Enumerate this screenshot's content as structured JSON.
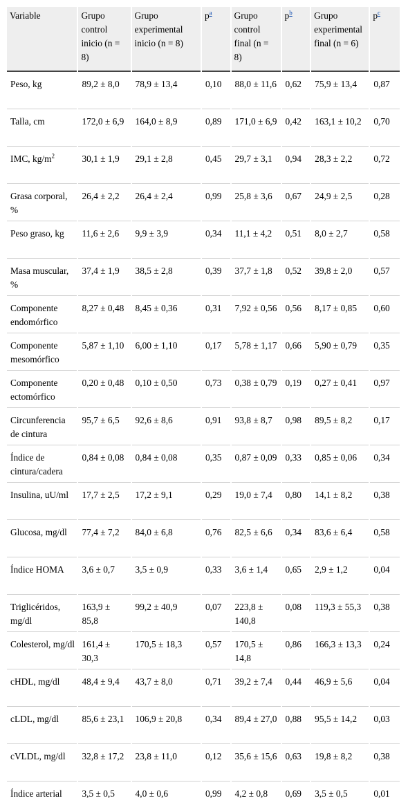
{
  "headers": [
    {
      "text": "Variable",
      "sup": ""
    },
    {
      "text": "Grupo control inicio (n = 8)",
      "sup": ""
    },
    {
      "text": "Grupo experimental inicio (n = 8)",
      "sup": ""
    },
    {
      "text": "p",
      "sup": "a"
    },
    {
      "text": "Grupo control final (n = 8)",
      "sup": ""
    },
    {
      "text": "p",
      "sup": "b"
    },
    {
      "text": "Grupo experimental final (n = 6)",
      "sup": ""
    },
    {
      "text": "p",
      "sup": "c"
    }
  ],
  "rows": [
    {
      "variable": "Peso, kg",
      "c1": "89,2 ± 8,0",
      "c2": "78,9 ± 13,4",
      "pa": "0,10",
      "c3": "88,0 ± 11,6",
      "pb": "0,62",
      "c4": "75,9 ± 13,4",
      "pc": "0,87"
    },
    {
      "variable": "Talla, cm",
      "c1": "172,0 ± 6,9",
      "c2": "164,0 ± 8,9",
      "pa": "0,89",
      "c3": "171,0 ± 6,9",
      "pb": "0,42",
      "c4": "163,1 ± 10,2",
      "pc": "0,70"
    },
    {
      "variable": "IMC, kg/m",
      "varsup": "2",
      "c1": "30,1 ± 1,9",
      "c2": "29,1 ± 2,8",
      "pa": "0,45",
      "c3": "29,7 ± 3,1",
      "pb": "0,94",
      "c4": "28,3 ± 2,2",
      "pc": "0,72"
    },
    {
      "variable": "Grasa corporal, %",
      "c1": "26,4 ± 2,2",
      "c2": "26,4 ± 2,4",
      "pa": "0,99",
      "c3": "25,8 ± 3,6",
      "pb": "0,67",
      "c4": "24,9 ± 2,5",
      "pc": "0,28"
    },
    {
      "variable": "Peso graso, kg",
      "c1": "11,6 ± 2,6",
      "c2": "9,9 ± 3,9",
      "pa": "0,34",
      "c3": "11,1 ± 4,2",
      "pb": "0,51",
      "c4": "8,0 ± 2,7",
      "pc": "0,58"
    },
    {
      "variable": "Masa muscular, %",
      "c1": "37,4 ± 1,9",
      "c2": "38,5 ± 2,8",
      "pa": "0,39",
      "c3": "37,7 ± 1,8",
      "pb": "0,52",
      "c4": "39,8 ± 2,0",
      "pc": "0,57"
    },
    {
      "variable": "Componente endomórfico",
      "c1": "8,27 ± 0,48",
      "c2": "8,45 ± 0,36",
      "pa": "0,31",
      "c3": "7,92 ± 0,56",
      "pb": "0,56",
      "c4": "8,17 ± 0,85",
      "pc": "0,60"
    },
    {
      "variable": "Componente mesomórfico",
      "c1": "5,87 ± 1,10",
      "c2": "6,00 ± 1,10",
      "pa": "0,17",
      "c3": "5,78 ± 1,17",
      "pb": "0,66",
      "c4": "5,90 ± 0,79",
      "pc": "0,35"
    },
    {
      "variable": "Componente ectomórfico",
      "c1": "0,20 ± 0,48",
      "c2": "0,10 ± 0,50",
      "pa": "0,73",
      "c3": "0,38 ± 0,79",
      "pb": "0,19",
      "c4": "0,27 ± 0,41",
      "pc": "0,97"
    },
    {
      "variable": "Circunferencia de cintura",
      "c1": "95,7 ± 6,5",
      "c2": "92,6 ± 8,6",
      "pa": "0,91",
      "c3": "93,8 ± 8,7",
      "pb": "0,98",
      "c4": "89,5 ± 8,2",
      "pc": "0,17"
    },
    {
      "variable": "Índice de cintura/cadera",
      "c1": "0,84 ± 0,08",
      "c2": "0,84 ± 0,08",
      "pa": "0,35",
      "c3": "0,87 ± 0,09",
      "pb": "0,33",
      "c4": "0,85 ± 0,06",
      "pc": "0,34"
    },
    {
      "variable": "Insulina, uU/ml",
      "c1": "17,7 ± 2,5",
      "c2": "17,2 ± 9,1",
      "pa": "0,29",
      "c3": "19,0 ± 7,4",
      "pb": "0,80",
      "c4": "14,1 ± 8,2",
      "pc": "0,38"
    },
    {
      "variable": "Glucosa, mg/dl",
      "c1": "77,4 ± 7,2",
      "c2": "84,0 ± 6,8",
      "pa": "0,76",
      "c3": "82,5 ± 6,6",
      "pb": "0,34",
      "c4": "83,6 ± 6,4",
      "pc": "0,58"
    },
    {
      "variable": "Índice HOMA",
      "c1": "3,6 ± 0,7",
      "c2": "3,5 ± 0,9",
      "pa": "0,33",
      "c3": "3,6 ± 1,4",
      "pb": "0,65",
      "c4": "2,9 ± 1,2",
      "pc": "0,04"
    },
    {
      "variable": "Triglicéridos, mg/dl",
      "c1": "163,9 ± 85,8",
      "c2": "99,2 ± 40,9",
      "pa": "0,07",
      "c3": "223,8 ± 140,8",
      "pb": "0,08",
      "c4": "119,3 ± 55,3",
      "pc": "0,38"
    },
    {
      "variable": "Colesterol, mg/dl",
      "c1": "161,4 ± 30,3",
      "c2": "170,5 ± 18,3",
      "pa": "0,57",
      "c3": "170,5 ± 14,8",
      "pb": "0,86",
      "c4": "166,3 ± 13,3",
      "pc": "0,24"
    },
    {
      "variable": "cHDL, mg/dl",
      "c1": "48,4 ± 9,4",
      "c2": "43,7 ± 8,0",
      "pa": "0,71",
      "c3": "39,2 ± 7,4",
      "pb": "0,44",
      "c4": "46,9 ± 5,6",
      "pc": "0,04"
    },
    {
      "variable": "cLDL, mg/dl",
      "c1": "85,6 ± 23,1",
      "c2": "106,9 ± 20,8",
      "pa": "0,34",
      "c3": "89,4 ± 27,0",
      "pb": "0,88",
      "c4": "95,5 ± 14,2",
      "pc": "0,03"
    },
    {
      "variable": "cVLDL, mg/dl",
      "c1": "32,8 ± 17,2",
      "c2": "23,8 ± 11,0",
      "pa": "0,12",
      "c3": "35,6 ± 15,6",
      "pb": "0,63",
      "c4": "19,8 ± 8,2",
      "pc": "0,38"
    },
    {
      "variable": "Índice arterial",
      "c1": "3,5 ± 0,5",
      "c2": "4,0 ± 0,6",
      "pa": "0,99",
      "c3": "4,2 ± 0,8",
      "pb": "0,69",
      "c4": "3,5 ± 0,5",
      "pc": "0,01"
    }
  ]
}
